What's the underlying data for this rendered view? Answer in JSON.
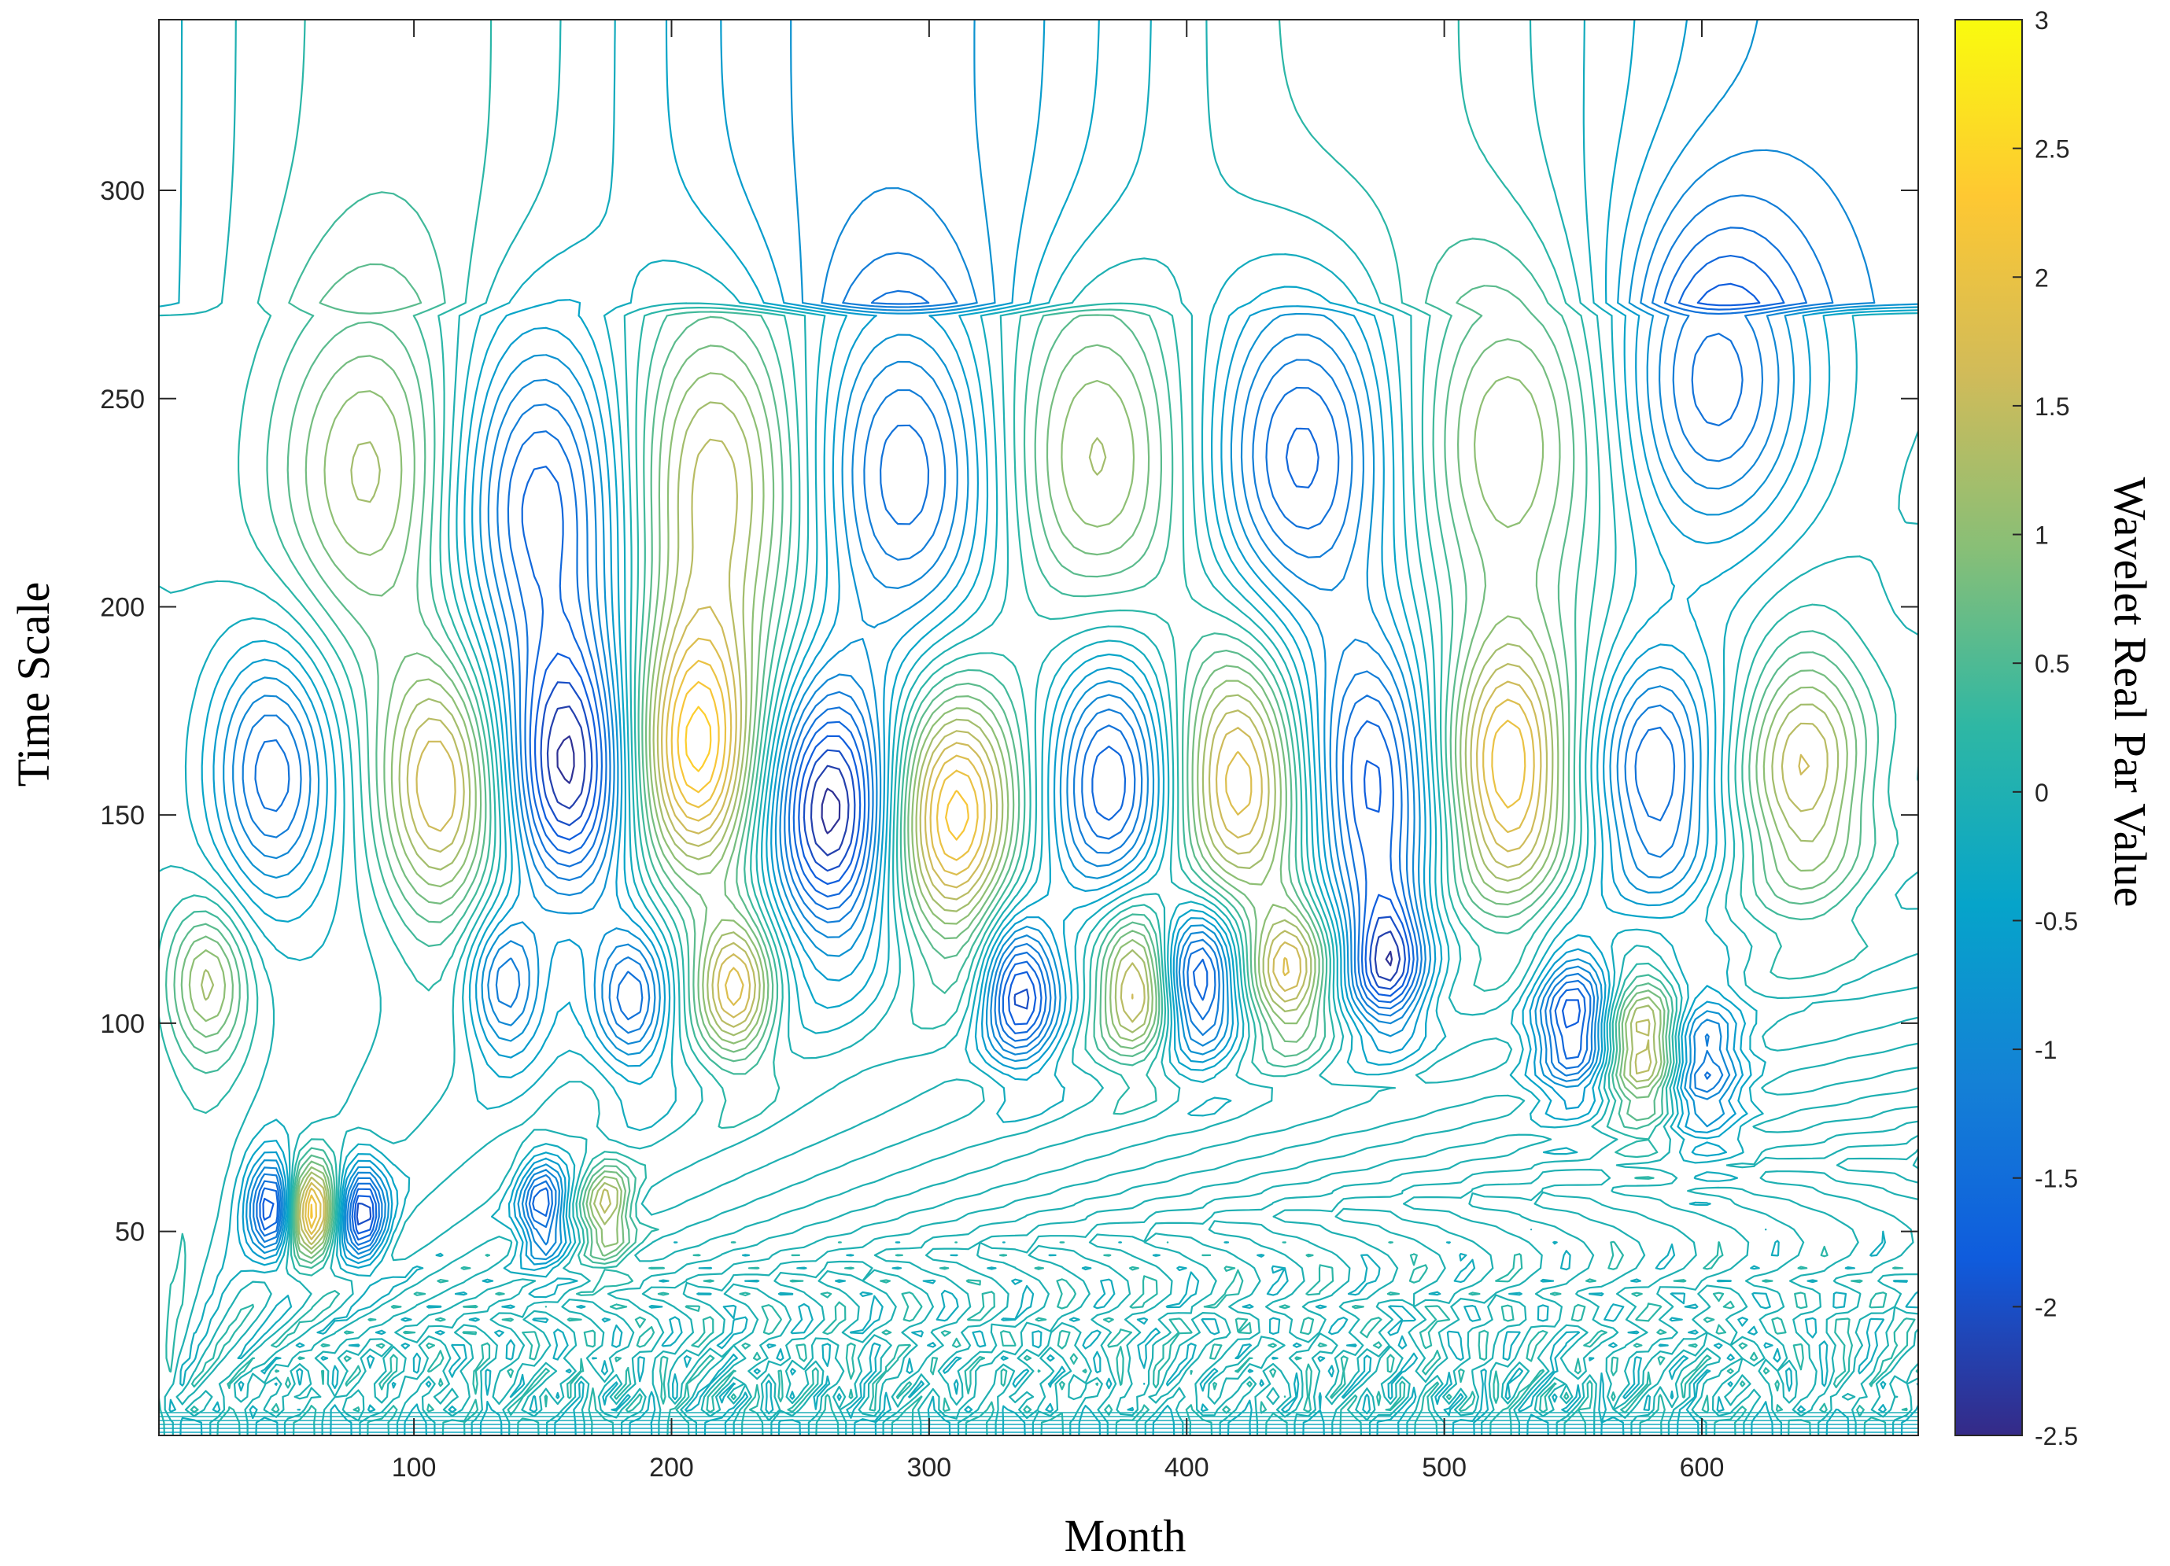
{
  "chart_data": {
    "type": "contour",
    "xlabel": "Month",
    "ylabel": "Time Scale",
    "colorbar_label": "Wavelet Real Par Value",
    "xlim": [
      1,
      684
    ],
    "ylim": [
      1,
      341
    ],
    "xticks": [
      100,
      200,
      300,
      400,
      500,
      600
    ],
    "yticks": [
      50,
      100,
      150,
      200,
      250,
      300
    ],
    "colorbar_range": [
      -2.5,
      3
    ],
    "colorbar_ticks": [
      3,
      2.5,
      2,
      1.5,
      1,
      0.5,
      0,
      -0.5,
      -1,
      -1.5,
      -2,
      -2.5
    ],
    "colormap": "parula",
    "colormap_colors": [
      "#352a87",
      "#0f5cdd",
      "#1481d6",
      "#06a4ca",
      "#2eb7a4",
      "#87bf77",
      "#d1bb59",
      "#fec832",
      "#f9fb0e"
    ],
    "grid": false,
    "features": [
      {
        "x": 45,
        "y": 160,
        "value": -1.6
      },
      {
        "x": 110,
        "y": 157,
        "value": 1.9
      },
      {
        "x": 160,
        "y": 160,
        "value": -2.4
      },
      {
        "x": 210,
        "y": 165,
        "value": 2.4
      },
      {
        "x": 262,
        "y": 150,
        "value": -2.5
      },
      {
        "x": 310,
        "y": 150,
        "value": 2.3
      },
      {
        "x": 370,
        "y": 160,
        "value": -1.8
      },
      {
        "x": 420,
        "y": 160,
        "value": 2.0
      },
      {
        "x": 472,
        "y": 158,
        "value": -1.9
      },
      {
        "x": 525,
        "y": 160,
        "value": 2.2
      },
      {
        "x": 582,
        "y": 158,
        "value": -1.6
      },
      {
        "x": 640,
        "y": 160,
        "value": 1.6
      },
      {
        "x": 20,
        "y": 110,
        "value": 1.2
      },
      {
        "x": 135,
        "y": 110,
        "value": -1.4
      },
      {
        "x": 185,
        "y": 105,
        "value": -1.5
      },
      {
        "x": 225,
        "y": 108,
        "value": 1.8
      },
      {
        "x": 335,
        "y": 108,
        "value": -2.2
      },
      {
        "x": 380,
        "y": 110,
        "value": 1.9
      },
      {
        "x": 405,
        "y": 110,
        "value": -2.0
      },
      {
        "x": 440,
        "y": 112,
        "value": 1.7
      },
      {
        "x": 478,
        "y": 115,
        "value": -2.1
      },
      {
        "x": 550,
        "y": 100,
        "value": -2.0
      },
      {
        "x": 578,
        "y": 95,
        "value": 1.8
      },
      {
        "x": 600,
        "y": 90,
        "value": -1.5
      },
      {
        "x": 85,
        "y": 232,
        "value": 1.3
      },
      {
        "x": 150,
        "y": 225,
        "value": -1.8
      },
      {
        "x": 215,
        "y": 230,
        "value": 1.6
      },
      {
        "x": 290,
        "y": 232,
        "value": -1.6
      },
      {
        "x": 365,
        "y": 235,
        "value": 1.3
      },
      {
        "x": 445,
        "y": 235,
        "value": -1.7
      },
      {
        "x": 525,
        "y": 238,
        "value": 1.2
      },
      {
        "x": 605,
        "y": 255,
        "value": -1.5
      },
      {
        "x": 45,
        "y": 55,
        "value": -2.0
      },
      {
        "x": 60,
        "y": 55,
        "value": 2.2
      },
      {
        "x": 80,
        "y": 55,
        "value": -2.1
      },
      {
        "x": 150,
        "y": 55,
        "value": -1.8
      },
      {
        "x": 175,
        "y": 55,
        "value": 1.5
      }
    ]
  }
}
